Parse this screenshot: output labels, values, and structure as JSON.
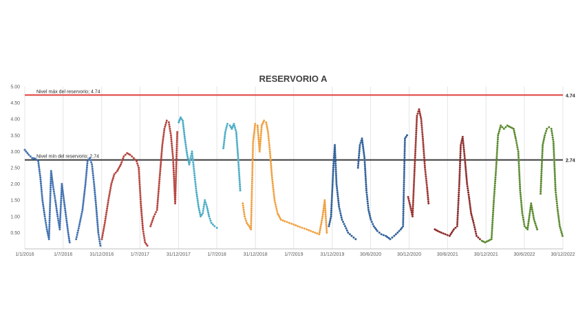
{
  "chart_data": {
    "type": "scatter",
    "title": "RESERVORIO A",
    "xlabel": "",
    "ylabel": "",
    "x_domain": [
      "2016-01-01",
      "2022-12-30"
    ],
    "ylim": [
      0.0,
      5.0
    ],
    "yticks": [
      "5.00",
      "4.50",
      "4.00",
      "3.50",
      "3.00",
      "2.50",
      "2.00",
      "1.50",
      "1.00",
      "0.50"
    ],
    "ytick_values": [
      5.0,
      4.5,
      4.0,
      3.5,
      3.0,
      2.5,
      2.0,
      1.5,
      1.0,
      0.5
    ],
    "xticks": [
      {
        "date": "2016-01-01",
        "label": "1/1/2016"
      },
      {
        "date": "2016-07-01",
        "label": "1/7/2016"
      },
      {
        "date": "2016-12-31",
        "label": "31/12/2016"
      },
      {
        "date": "2017-07-01",
        "label": "1/7/2017"
      },
      {
        "date": "2017-12-31",
        "label": "31/12/2017"
      },
      {
        "date": "2018-07-01",
        "label": "1/7/2018"
      },
      {
        "date": "2018-12-31",
        "label": "31/12/2018"
      },
      {
        "date": "2019-07-01",
        "label": "1/7/2019"
      },
      {
        "date": "2019-12-31",
        "label": "31/12/2019"
      },
      {
        "date": "2020-06-30",
        "label": "30/6/2020"
      },
      {
        "date": "2020-12-30",
        "label": "30/12/2020"
      },
      {
        "date": "2021-06-30",
        "label": "30/6/2021"
      },
      {
        "date": "2021-12-30",
        "label": "30/12/2021"
      },
      {
        "date": "2022-06-30",
        "label": "30/6/2022"
      },
      {
        "date": "2022-12-30",
        "label": "30/12/2022"
      }
    ],
    "grid": {
      "vertical": true,
      "horizontal": false
    },
    "reference_lines": [
      {
        "y": 4.74,
        "label": "Nivel máx del reservorio; 4.74",
        "value_label": "4.74",
        "color": "#e0403a"
      },
      {
        "y": 2.74,
        "label": "Nivel mín del reservorio; 2.74",
        "value_label": "2.74",
        "color": "#3a3a3a"
      }
    ],
    "series": [
      {
        "color": "#3f6fb0",
        "points": [
          [
            "2016-01-01",
            3.05
          ],
          [
            "2016-01-20",
            2.9
          ],
          [
            "2016-02-05",
            2.8
          ],
          [
            "2016-02-20",
            2.78
          ],
          [
            "2016-03-05",
            2.7
          ],
          [
            "2016-03-15",
            2.2
          ],
          [
            "2016-03-25",
            1.5
          ],
          [
            "2016-04-05",
            1.0
          ],
          [
            "2016-04-15",
            0.6
          ],
          [
            "2016-04-25",
            0.3
          ],
          [
            "2016-05-05",
            2.4
          ],
          [
            "2016-05-15",
            1.9
          ],
          [
            "2016-05-25",
            1.5
          ],
          [
            "2016-06-05",
            1.0
          ],
          [
            "2016-06-15",
            0.6
          ],
          [
            "2016-06-25",
            2.0
          ],
          [
            "2016-07-05",
            1.5
          ],
          [
            "2016-07-15",
            1.0
          ],
          [
            "2016-07-25",
            0.5
          ],
          [
            "2016-08-01",
            0.2
          ]
        ]
      },
      {
        "color": "#3f6fb0",
        "points": [
          [
            "2016-09-01",
            0.3
          ],
          [
            "2016-09-15",
            0.7
          ],
          [
            "2016-10-01",
            1.2
          ],
          [
            "2016-10-15",
            2.0
          ],
          [
            "2016-10-25",
            2.7
          ],
          [
            "2016-11-05",
            2.8
          ],
          [
            "2016-11-15",
            2.6
          ],
          [
            "2016-11-25",
            2.0
          ],
          [
            "2016-12-05",
            1.3
          ],
          [
            "2016-12-15",
            0.5
          ],
          [
            "2016-12-25",
            0.1
          ]
        ]
      },
      {
        "color": "#b5433c",
        "points": [
          [
            "2017-01-01",
            0.3
          ],
          [
            "2017-01-15",
            0.8
          ],
          [
            "2017-02-01",
            1.5
          ],
          [
            "2017-02-15",
            2.0
          ],
          [
            "2017-03-01",
            2.3
          ],
          [
            "2017-03-15",
            2.4
          ],
          [
            "2017-04-01",
            2.6
          ],
          [
            "2017-04-15",
            2.85
          ],
          [
            "2017-05-01",
            2.95
          ],
          [
            "2017-05-15",
            2.9
          ],
          [
            "2017-06-01",
            2.8
          ],
          [
            "2017-06-15",
            2.7
          ],
          [
            "2017-06-25",
            2.5
          ],
          [
            "2017-07-05",
            1.4
          ],
          [
            "2017-07-15",
            0.6
          ],
          [
            "2017-07-25",
            0.2
          ],
          [
            "2017-08-05",
            0.1
          ]
        ]
      },
      {
        "color": "#b5433c",
        "points": [
          [
            "2017-08-20",
            0.7
          ],
          [
            "2017-09-05",
            1.0
          ],
          [
            "2017-09-20",
            1.2
          ],
          [
            "2017-10-05",
            2.4
          ],
          [
            "2017-10-15",
            3.2
          ],
          [
            "2017-10-25",
            3.7
          ],
          [
            "2017-11-05",
            3.95
          ],
          [
            "2017-11-15",
            3.9
          ],
          [
            "2017-11-25",
            3.5
          ],
          [
            "2017-12-05",
            2.8
          ],
          [
            "2017-12-15",
            1.4
          ],
          [
            "2017-12-25",
            3.6
          ]
        ]
      },
      {
        "color": "#4bacc6",
        "points": [
          [
            "2018-01-01",
            3.9
          ],
          [
            "2018-01-10",
            4.05
          ],
          [
            "2018-01-20",
            3.95
          ],
          [
            "2018-01-30",
            3.4
          ],
          [
            "2018-02-10",
            2.9
          ],
          [
            "2018-02-20",
            2.6
          ],
          [
            "2018-03-05",
            3.0
          ],
          [
            "2018-03-15",
            2.4
          ],
          [
            "2018-03-25",
            1.8
          ],
          [
            "2018-04-05",
            1.3
          ],
          [
            "2018-04-15",
            1.0
          ],
          [
            "2018-04-25",
            1.1
          ],
          [
            "2018-05-05",
            1.5
          ],
          [
            "2018-05-15",
            1.3
          ],
          [
            "2018-05-25",
            1.0
          ],
          [
            "2018-06-05",
            0.8
          ],
          [
            "2018-06-20",
            0.7
          ],
          [
            "2018-07-01",
            0.65
          ]
        ]
      },
      {
        "color": "#4bacc6",
        "points": [
          [
            "2018-08-01",
            3.1
          ],
          [
            "2018-08-10",
            3.6
          ],
          [
            "2018-08-20",
            3.85
          ],
          [
            "2018-09-01",
            3.8
          ],
          [
            "2018-09-10",
            3.7
          ],
          [
            "2018-09-20",
            3.85
          ],
          [
            "2018-10-01",
            3.6
          ],
          [
            "2018-10-10",
            2.8
          ],
          [
            "2018-10-20",
            1.8
          ]
        ]
      },
      {
        "color": "#f0a040",
        "points": [
          [
            "2018-11-01",
            1.4
          ],
          [
            "2018-11-10",
            1.0
          ],
          [
            "2018-11-20",
            0.8
          ],
          [
            "2018-12-01",
            0.7
          ],
          [
            "2018-12-10",
            0.6
          ],
          [
            "2018-12-20",
            3.3
          ],
          [
            "2018-12-30",
            3.85
          ],
          [
            "2019-01-10",
            3.8
          ],
          [
            "2019-01-20",
            3.0
          ],
          [
            "2019-01-30",
            3.8
          ],
          [
            "2019-02-10",
            3.95
          ],
          [
            "2019-02-20",
            3.9
          ],
          [
            "2019-03-01",
            3.6
          ],
          [
            "2019-03-10",
            3.0
          ],
          [
            "2019-03-20",
            2.2
          ],
          [
            "2019-04-01",
            1.5
          ],
          [
            "2019-04-15",
            1.1
          ],
          [
            "2019-05-01",
            0.9
          ],
          [
            "2019-05-20",
            0.85
          ],
          [
            "2019-06-10",
            0.8
          ],
          [
            "2019-07-01",
            0.75
          ],
          [
            "2019-07-20",
            0.7
          ],
          [
            "2019-08-10",
            0.65
          ],
          [
            "2019-09-01",
            0.6
          ],
          [
            "2019-09-20",
            0.55
          ],
          [
            "2019-10-10",
            0.5
          ],
          [
            "2019-10-30",
            0.45
          ],
          [
            "2019-11-15",
            1.0
          ],
          [
            "2019-11-25",
            1.5
          ],
          [
            "2019-12-05",
            0.5
          ]
        ]
      },
      {
        "color": "#2e5f99",
        "points": [
          [
            "2019-12-15",
            0.7
          ],
          [
            "2019-12-25",
            1.0
          ],
          [
            "2020-01-05",
            2.5
          ],
          [
            "2020-01-12",
            3.2
          ],
          [
            "2020-01-20",
            2.0
          ],
          [
            "2020-02-01",
            1.3
          ],
          [
            "2020-02-15",
            0.9
          ],
          [
            "2020-03-01",
            0.7
          ],
          [
            "2020-03-15",
            0.5
          ],
          [
            "2020-04-01",
            0.4
          ],
          [
            "2020-04-20",
            0.3
          ]
        ]
      },
      {
        "color": "#2e5f99",
        "points": [
          [
            "2020-05-01",
            2.5
          ],
          [
            "2020-05-10",
            3.2
          ],
          [
            "2020-05-20",
            3.4
          ],
          [
            "2020-06-01",
            2.8
          ],
          [
            "2020-06-10",
            1.8
          ],
          [
            "2020-06-20",
            1.2
          ],
          [
            "2020-07-01",
            0.9
          ],
          [
            "2020-07-15",
            0.7
          ],
          [
            "2020-08-01",
            0.55
          ],
          [
            "2020-08-20",
            0.45
          ],
          [
            "2020-09-10",
            0.4
          ],
          [
            "2020-10-01",
            0.3
          ],
          [
            "2020-10-20",
            0.4
          ],
          [
            "2020-11-05",
            0.5
          ],
          [
            "2020-11-20",
            0.6
          ],
          [
            "2020-12-01",
            0.7
          ],
          [
            "2020-12-10",
            3.4
          ],
          [
            "2020-12-20",
            3.5
          ]
        ]
      },
      {
        "color": "#9c3330",
        "points": [
          [
            "2020-12-25",
            1.6
          ],
          [
            "2021-01-05",
            1.3
          ],
          [
            "2021-01-15",
            1.0
          ],
          [
            "2021-01-25",
            2.5
          ],
          [
            "2021-02-05",
            4.1
          ],
          [
            "2021-02-15",
            4.3
          ],
          [
            "2021-02-25",
            4.0
          ],
          [
            "2021-03-05",
            3.4
          ],
          [
            "2021-03-15",
            2.5
          ],
          [
            "2021-03-25",
            1.9
          ],
          [
            "2021-04-01",
            1.4
          ]
        ]
      },
      {
        "color": "#8b2a2a",
        "points": [
          [
            "2021-05-01",
            0.6
          ],
          [
            "2021-05-15",
            0.55
          ],
          [
            "2021-06-01",
            0.5
          ],
          [
            "2021-06-20",
            0.45
          ],
          [
            "2021-07-10",
            0.4
          ],
          [
            "2021-07-30",
            0.6
          ],
          [
            "2021-08-15",
            0.7
          ],
          [
            "2021-08-25",
            2.0
          ],
          [
            "2021-09-01",
            3.2
          ],
          [
            "2021-09-10",
            3.45
          ],
          [
            "2021-09-20",
            2.8
          ],
          [
            "2021-10-01",
            2.0
          ],
          [
            "2021-10-10",
            1.6
          ],
          [
            "2021-10-20",
            1.1
          ],
          [
            "2021-11-01",
            0.8
          ],
          [
            "2021-11-15",
            0.4
          ],
          [
            "2021-12-01",
            0.3
          ]
        ]
      },
      {
        "color": "#5a8a2e",
        "points": [
          [
            "2021-12-10",
            0.25
          ],
          [
            "2021-12-25",
            0.2
          ],
          [
            "2022-01-10",
            0.25
          ],
          [
            "2022-01-25",
            0.3
          ],
          [
            "2022-02-05",
            1.5
          ],
          [
            "2022-02-15",
            2.4
          ],
          [
            "2022-02-25",
            3.5
          ],
          [
            "2022-03-10",
            3.8
          ],
          [
            "2022-03-25",
            3.7
          ],
          [
            "2022-04-10",
            3.8
          ],
          [
            "2022-04-25",
            3.75
          ],
          [
            "2022-05-10",
            3.7
          ],
          [
            "2022-05-20",
            3.4
          ],
          [
            "2022-06-01",
            3.0
          ],
          [
            "2022-06-10",
            1.8
          ],
          [
            "2022-06-20",
            1.1
          ],
          [
            "2022-07-01",
            0.7
          ],
          [
            "2022-07-15",
            0.6
          ],
          [
            "2022-08-01",
            1.4
          ],
          [
            "2022-08-15",
            0.9
          ],
          [
            "2022-08-30",
            0.6
          ]
        ]
      },
      {
        "color": "#5a8a2e",
        "points": [
          [
            "2022-09-15",
            1.7
          ],
          [
            "2022-09-25",
            3.2
          ],
          [
            "2022-10-05",
            3.5
          ],
          [
            "2022-10-15",
            3.7
          ],
          [
            "2022-10-25",
            3.75
          ],
          [
            "2022-11-05",
            3.7
          ],
          [
            "2022-11-15",
            3.3
          ],
          [
            "2022-11-25",
            1.8
          ],
          [
            "2022-12-05",
            1.2
          ],
          [
            "2022-12-15",
            0.7
          ],
          [
            "2022-12-28",
            0.4
          ]
        ]
      }
    ]
  }
}
